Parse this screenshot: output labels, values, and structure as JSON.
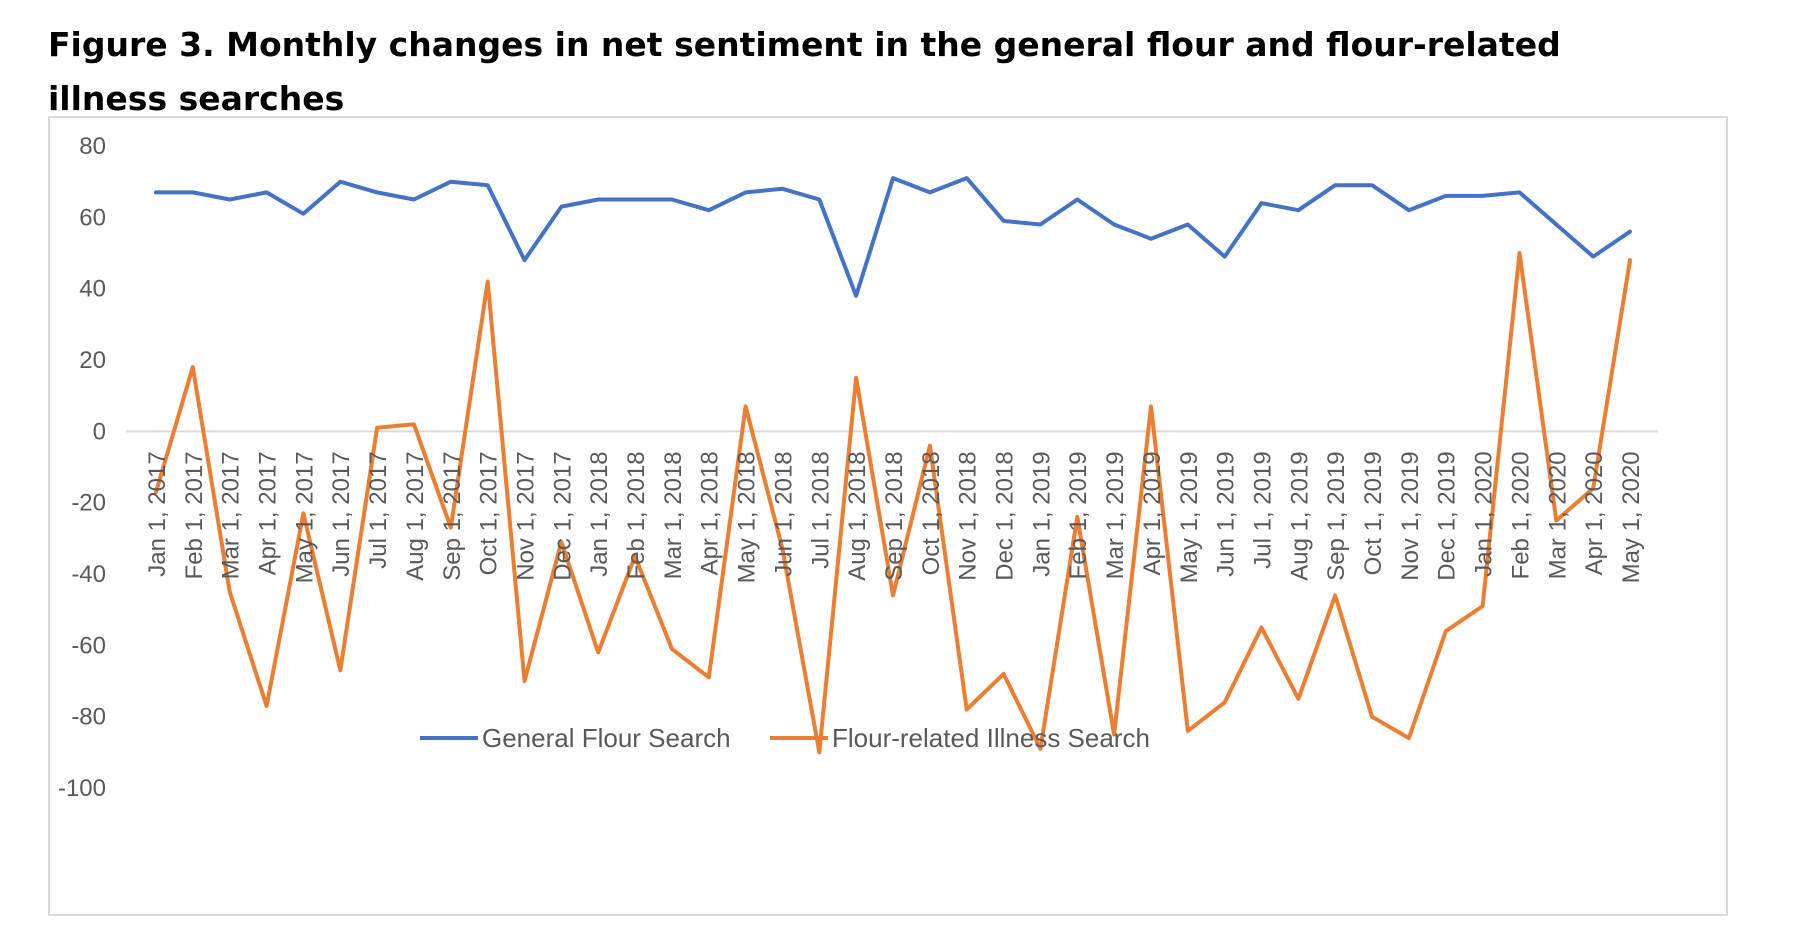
{
  "figure": {
    "title": "Figure 3. Monthly changes in net sentiment in the general flour and flour-related illness searches"
  },
  "chart_data": {
    "type": "line",
    "title": "",
    "xlabel": "",
    "ylabel": "",
    "ylim": [
      -100,
      80
    ],
    "yticks": [
      80,
      60,
      40,
      20,
      0,
      -20,
      -40,
      -60,
      -80,
      -100
    ],
    "grid": false,
    "legend_position": "bottom",
    "categories": [
      "Jan 1, 2017",
      "Feb 1, 2017",
      "Mar 1, 2017",
      "Apr 1, 2017",
      "May 1, 2017",
      "Jun 1, 2017",
      "Jul 1, 2017",
      "Aug 1, 2017",
      "Sep 1, 2017",
      "Oct 1, 2017",
      "Nov 1, 2017",
      "Dec 1, 2017",
      "Jan 1, 2018",
      "Feb 1, 2018",
      "Mar 1, 2018",
      "Apr 1, 2018",
      "May 1, 2018",
      "Jun 1, 2018",
      "Jul 1, 2018",
      "Aug 1, 2018",
      "Sep 1, 2018",
      "Oct 1, 2018",
      "Nov 1, 2018",
      "Dec 1, 2018",
      "Jan 1, 2019",
      "Feb 1, 2019",
      "Mar 1, 2019",
      "Apr 1, 2019",
      "May 1, 2019",
      "Jun 1, 2019",
      "Jul 1, 2019",
      "Aug 1, 2019",
      "Sep 1, 2019",
      "Oct 1, 2019",
      "Nov 1, 2019",
      "Dec 1, 2019",
      "Jan 1, 2020",
      "Feb 1, 2020",
      "Mar 1, 2020",
      "Apr 1, 2020",
      "May 1, 2020"
    ],
    "series": [
      {
        "name": "General Flour Search",
        "color": "#4472c4",
        "values": [
          67,
          67,
          65,
          67,
          61,
          70,
          67,
          65,
          70,
          69,
          48,
          63,
          65,
          65,
          65,
          62,
          67,
          68,
          65,
          38,
          71,
          67,
          71,
          59,
          58,
          65,
          58,
          54,
          58,
          49,
          64,
          62,
          69,
          69,
          62,
          66,
          66,
          67,
          58,
          49,
          56
        ]
      },
      {
        "name": "Flour-related Illness Search",
        "color": "#ed7d31",
        "values": [
          -17,
          18,
          -45,
          -77,
          -23,
          -67,
          1,
          2,
          -27,
          42,
          -70,
          -31,
          -62,
          -35,
          -61,
          -69,
          7,
          -33,
          -90,
          15,
          -46,
          -4,
          -78,
          -68,
          -89,
          -24,
          -85,
          7,
          -84,
          -76,
          -55,
          -75,
          -46,
          -80,
          -86,
          -56,
          -49,
          50,
          -25,
          -16,
          48
        ]
      }
    ]
  }
}
